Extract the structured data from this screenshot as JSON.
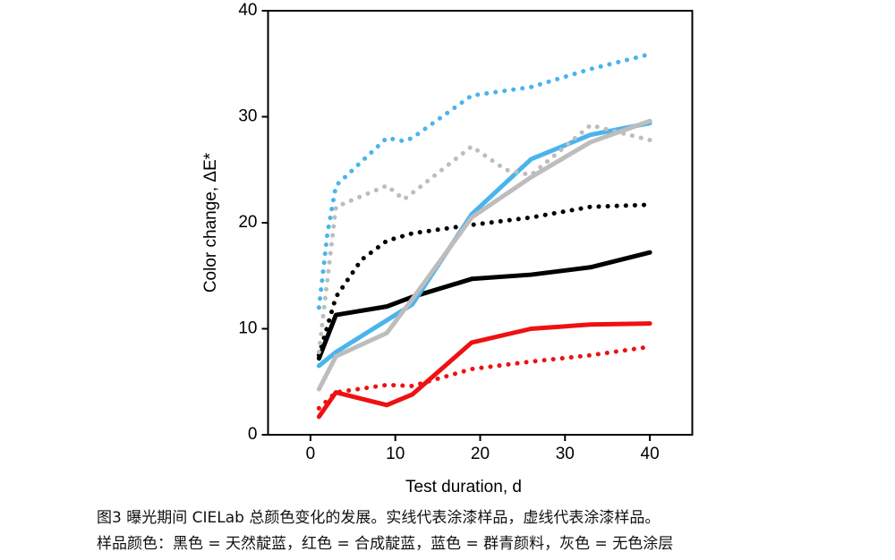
{
  "chart_data": {
    "type": "line",
    "x_label": "Test duration, d",
    "y_label": "Color change, ΔE*",
    "xlim": [
      -5,
      45
    ],
    "xticks": [
      0,
      10,
      20,
      30,
      40
    ],
    "ylim": [
      0,
      40
    ],
    "yticks": [
      0,
      10,
      20,
      30,
      40
    ],
    "series": [
      {
        "color": "#000000",
        "style": "solid",
        "x": [
          1,
          3,
          9,
          12,
          19,
          26,
          33,
          40
        ],
        "values": [
          7.2,
          11.3,
          12.1,
          13,
          14.7,
          15.1,
          15.8,
          17.2
        ]
      },
      {
        "color": "#000000",
        "style": "dotted",
        "x": [
          1,
          3,
          6,
          9,
          12,
          19,
          26,
          33,
          40
        ],
        "values": [
          7.5,
          13,
          16.5,
          18.3,
          19,
          19.8,
          20.5,
          21.5,
          21.7
        ]
      },
      {
        "color": "#ee1111",
        "style": "solid",
        "x": [
          1,
          3,
          9,
          12,
          19,
          26,
          33,
          40
        ],
        "values": [
          1.7,
          4,
          2.8,
          3.8,
          8.7,
          10,
          10.4,
          10.5
        ]
      },
      {
        "color": "#ee1111",
        "style": "dotted",
        "x": [
          1,
          3,
          9,
          12,
          19,
          26,
          33,
          40
        ],
        "values": [
          2.5,
          4,
          4.7,
          4.6,
          6.2,
          6.9,
          7.5,
          8.3
        ]
      },
      {
        "color": "#4ab4ec",
        "style": "solid",
        "x": [
          1,
          3,
          9,
          12,
          19,
          26,
          33,
          40
        ],
        "values": [
          6.5,
          7.8,
          10.8,
          12.3,
          20.8,
          26,
          28.3,
          29.4
        ]
      },
      {
        "color": "#4ab4ec",
        "style": "dotted",
        "x": [
          1,
          2,
          3,
          9,
          11,
          12,
          19,
          26,
          33,
          40
        ],
        "values": [
          12,
          19,
          23.5,
          28,
          27.7,
          28,
          32,
          32.8,
          34.5,
          35.9
        ]
      },
      {
        "color": "#bdbdbd",
        "style": "solid",
        "x": [
          1,
          3,
          9,
          12,
          19,
          26,
          33,
          40
        ],
        "values": [
          4.3,
          7.4,
          9.6,
          12.8,
          20.5,
          24.3,
          27.6,
          29.6
        ]
      },
      {
        "color": "#bdbdbd",
        "style": "dotted",
        "x": [
          1,
          3,
          9,
          11,
          12,
          19,
          23,
          26,
          33,
          40
        ],
        "values": [
          7.8,
          21.5,
          23.5,
          22.2,
          22.8,
          27.2,
          25,
          24.5,
          29.2,
          27.8
        ]
      }
    ]
  },
  "caption": {
    "line1": "图3 曝光期间 CIELab 总颜色变化的发展。实线代表涂漆样品，虚线代表涂漆样品。",
    "line2": "样品颜色：黑色 = 天然靛蓝，红色 = 合成靛蓝，蓝色 = 群青颜料，灰色 = 无色涂层"
  }
}
